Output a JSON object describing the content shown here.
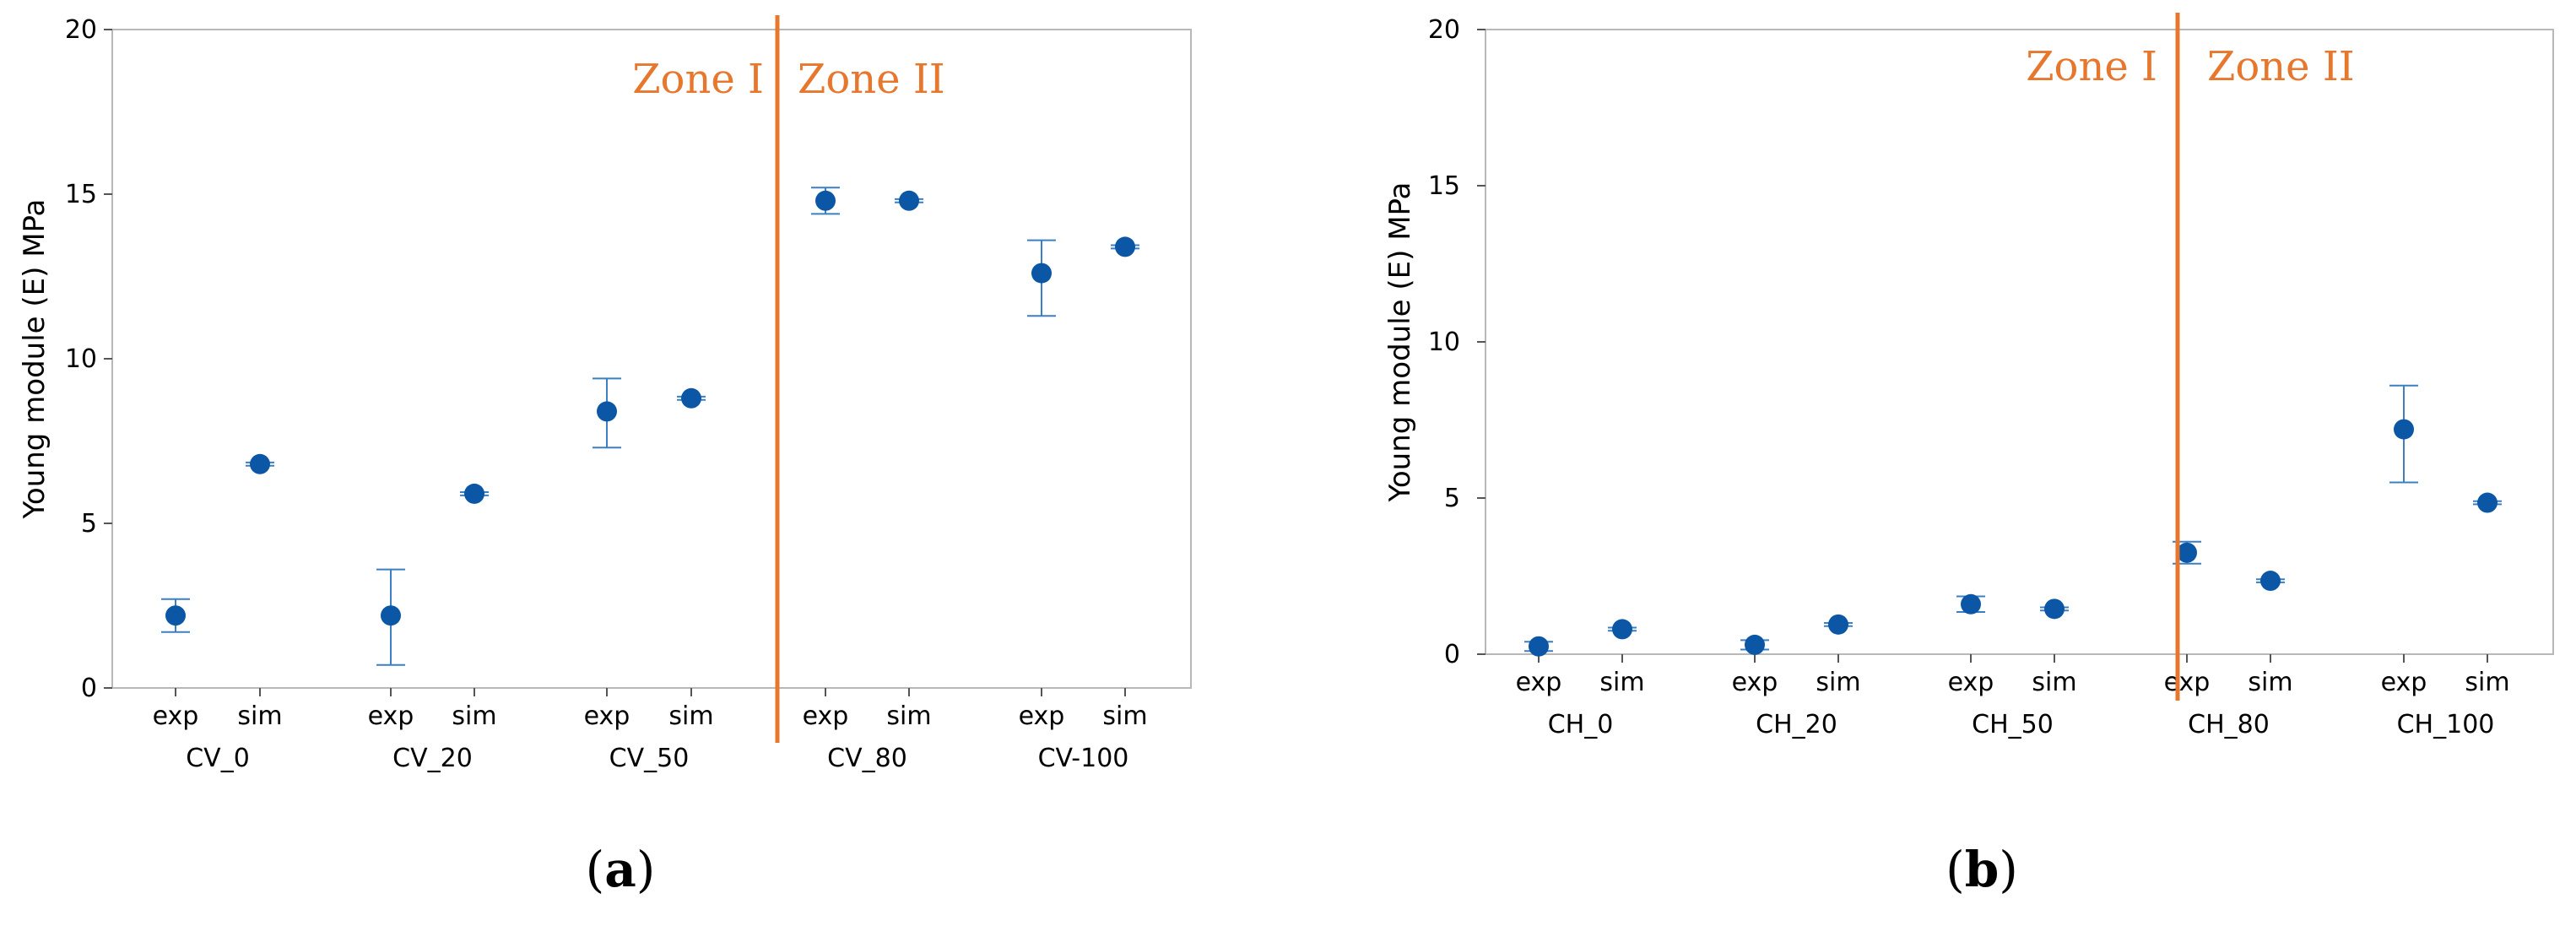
{
  "colors": {
    "point": "#0b57a6",
    "errorbar": "#3b7fc4",
    "zone_line": "#e8772e",
    "zone_text": "#e8772e"
  },
  "chart_data": [
    {
      "type": "scatter",
      "panel_label": "a",
      "ylabel": "Young module (E) MPa",
      "ylim": [
        0,
        20
      ],
      "yticks": [
        0,
        5,
        10,
        15,
        20
      ],
      "zones": [
        "Zone I",
        "Zone II"
      ],
      "groups": [
        {
          "name": "CV_0",
          "points": [
            {
              "label": "exp",
              "value": 2.2,
              "err_low": 1.7,
              "err_high": 2.7
            },
            {
              "label": "sim",
              "value": 6.8,
              "err_low": 6.75,
              "err_high": 6.85
            }
          ]
        },
        {
          "name": "CV_20",
          "points": [
            {
              "label": "exp",
              "value": 2.2,
              "err_low": 0.7,
              "err_high": 3.6
            },
            {
              "label": "sim",
              "value": 5.9,
              "err_low": 5.85,
              "err_high": 5.95
            }
          ]
        },
        {
          "name": "CV_50",
          "points": [
            {
              "label": "exp",
              "value": 8.4,
              "err_low": 7.3,
              "err_high": 9.4
            },
            {
              "label": "sim",
              "value": 8.8,
              "err_low": 8.75,
              "err_high": 8.85
            }
          ]
        },
        {
          "name": "CV_80",
          "points": [
            {
              "label": "exp",
              "value": 14.8,
              "err_low": 14.4,
              "err_high": 15.2
            },
            {
              "label": "sim",
              "value": 14.8,
              "err_low": 14.75,
              "err_high": 14.85
            }
          ]
        },
        {
          "name": "CV-100",
          "points": [
            {
              "label": "exp",
              "value": 12.6,
              "err_low": 11.3,
              "err_high": 13.6
            },
            {
              "label": "sim",
              "value": 13.4,
              "err_low": 13.35,
              "err_high": 13.45
            }
          ]
        }
      ],
      "zone_boundary_after_group": 2
    },
    {
      "type": "scatter",
      "panel_label": "b",
      "ylabel": "Young module (E) MPa",
      "ylim": [
        0,
        20
      ],
      "yticks": [
        0,
        5,
        10,
        15,
        20
      ],
      "zones": [
        "Zone I",
        "Zone II"
      ],
      "groups": [
        {
          "name": "CH_0",
          "points": [
            {
              "label": "exp",
              "value": 0.25,
              "err_low": 0.1,
              "err_high": 0.4
            },
            {
              "label": "sim",
              "value": 0.8,
              "err_low": 0.75,
              "err_high": 0.85
            }
          ]
        },
        {
          "name": "CH_20",
          "points": [
            {
              "label": "exp",
              "value": 0.3,
              "err_low": 0.15,
              "err_high": 0.45
            },
            {
              "label": "sim",
              "value": 0.95,
              "err_low": 0.9,
              "err_high": 1.0
            }
          ]
        },
        {
          "name": "CH_50",
          "points": [
            {
              "label": "exp",
              "value": 1.6,
              "err_low": 1.35,
              "err_high": 1.85
            },
            {
              "label": "sim",
              "value": 1.45,
              "err_low": 1.4,
              "err_high": 1.5
            }
          ]
        },
        {
          "name": "CH_80",
          "points": [
            {
              "label": "exp",
              "value": 3.25,
              "err_low": 2.9,
              "err_high": 3.6
            },
            {
              "label": "sim",
              "value": 2.35,
              "err_low": 2.3,
              "err_high": 2.4
            }
          ]
        },
        {
          "name": "CH_100",
          "points": [
            {
              "label": "exp",
              "value": 7.2,
              "err_low": 5.5,
              "err_high": 8.6
            },
            {
              "label": "sim",
              "value": 4.85,
              "err_low": 4.8,
              "err_high": 4.9
            }
          ]
        }
      ],
      "zone_boundary_after_group": 2.5
    }
  ]
}
